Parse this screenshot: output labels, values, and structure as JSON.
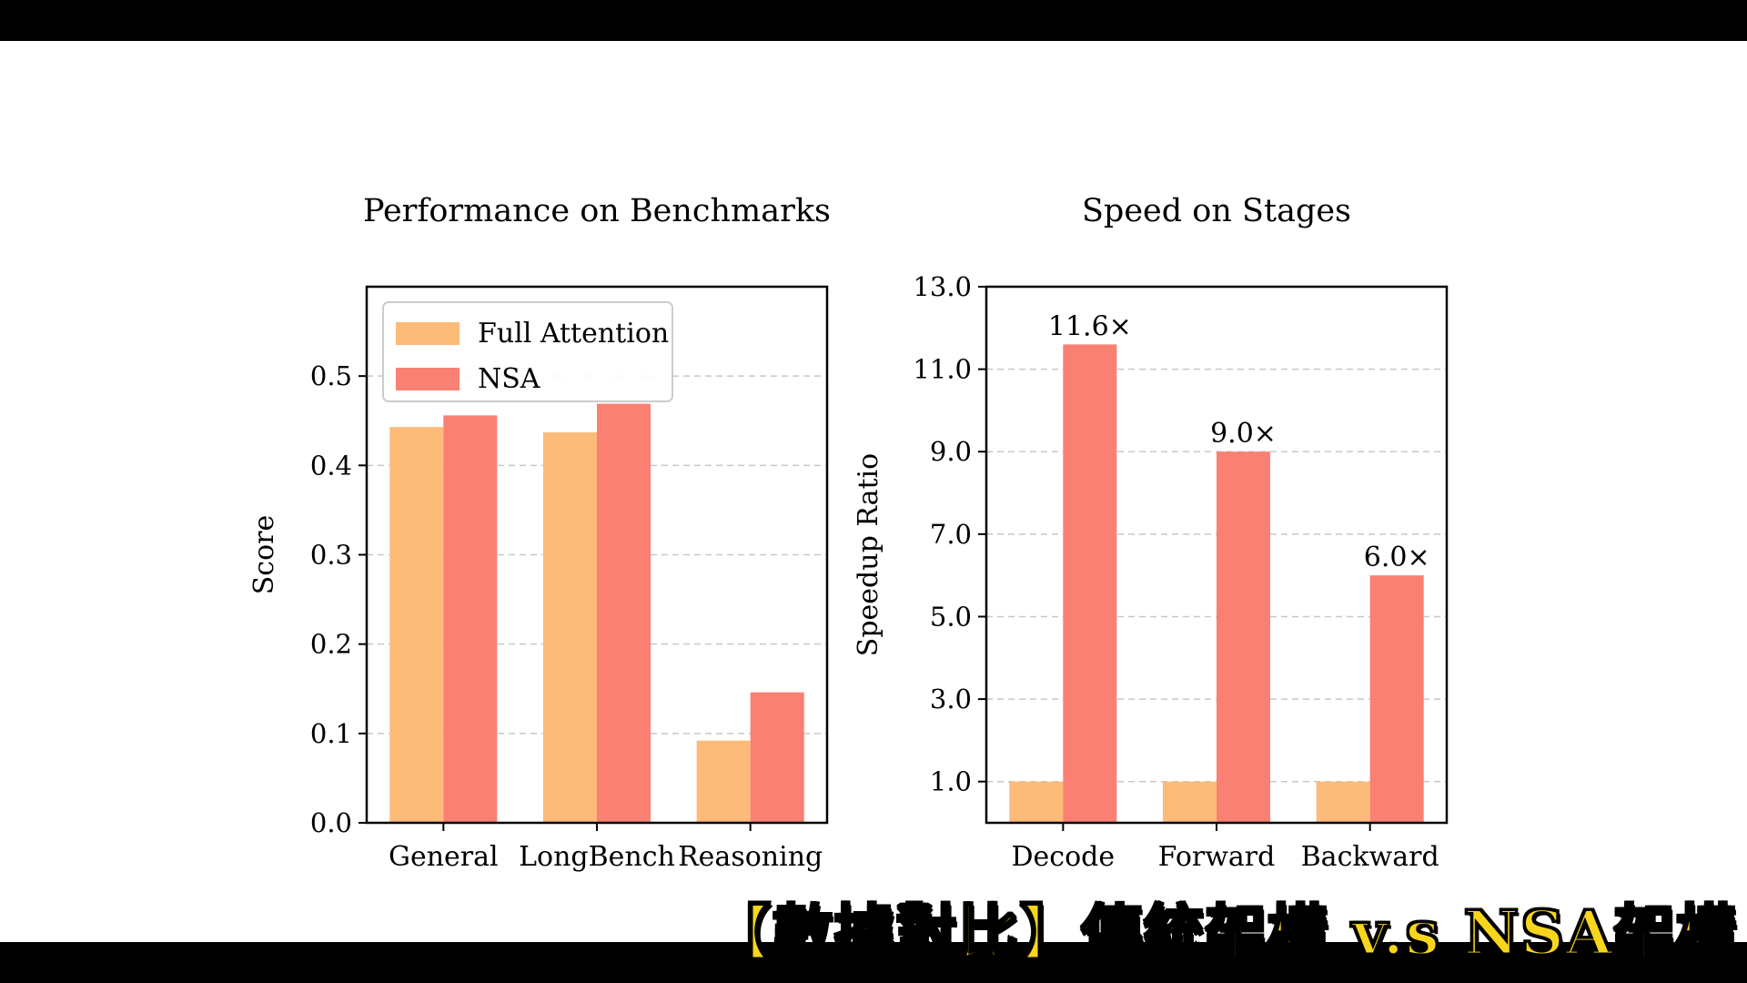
{
  "caption": "【數據對比】傳統架構 v.s NSA架構",
  "colors": {
    "full_attention": "#fdbb7a",
    "nsa": "#f98072",
    "grid": "#c8c8c8",
    "axis": "#000000",
    "legend_border": "#cccccc"
  },
  "chart_data": [
    {
      "type": "bar",
      "title": "Performance on Benchmarks",
      "xlabel": "",
      "ylabel": "Score",
      "ylim": [
        0,
        0.6
      ],
      "yticks": [
        0.0,
        0.1,
        0.2,
        0.3,
        0.4,
        0.5
      ],
      "ytick_labels": [
        "0.0",
        "0.1",
        "0.2",
        "0.3",
        "0.4",
        "0.5"
      ],
      "grid": "horizontal dashed",
      "legend_position": "top-left",
      "categories": [
        "General",
        "LongBench",
        "Reasoning"
      ],
      "series": [
        {
          "name": "Full Attention",
          "values": [
            0.443,
            0.437,
            0.092
          ]
        },
        {
          "name": "NSA",
          "values": [
            0.456,
            0.469,
            0.146
          ]
        }
      ],
      "data_labels": []
    },
    {
      "type": "bar",
      "title": "Speed on Stages",
      "xlabel": "",
      "ylabel": "Speedup Ratio",
      "ylim": [
        0,
        13.0
      ],
      "yticks": [
        1.0,
        3.0,
        5.0,
        7.0,
        9.0,
        11.0,
        13.0
      ],
      "ytick_labels": [
        "1.0",
        "3.0",
        "5.0",
        "7.0",
        "9.0",
        "11.0",
        "13.0"
      ],
      "grid": "horizontal dashed",
      "legend_position": "none",
      "categories": [
        "Decode",
        "Forward",
        "Backward"
      ],
      "series": [
        {
          "name": "Full Attention",
          "values": [
            1.0,
            1.0,
            1.0
          ]
        },
        {
          "name": "NSA",
          "values": [
            11.6,
            9.0,
            6.0
          ]
        }
      ],
      "data_labels": [
        "11.6×",
        "9.0×",
        "6.0×"
      ]
    }
  ]
}
